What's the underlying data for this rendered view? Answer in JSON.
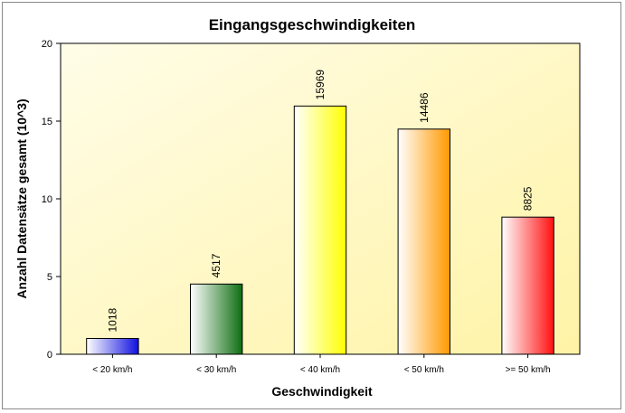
{
  "chart_data": {
    "type": "bar",
    "title": "Eingangsgeschwindigkeiten",
    "xlabel": "Geschwindigkeit",
    "ylabel": "Anzahl Datensätze gesamt (10^3)",
    "categories": [
      "< 20 km/h",
      "< 30 km/h",
      "< 40 km/h",
      "< 50 km/h",
      ">= 50 km/h"
    ],
    "values": [
      1.018,
      4.517,
      15.969,
      14.486,
      8.825
    ],
    "data_labels": [
      "1018",
      "4517",
      "15969",
      "14486",
      "8825"
    ],
    "bar_colors": [
      "#1010e0",
      "#0e6e12",
      "#ffff00",
      "#ff9900",
      "#ff1010"
    ],
    "ylim": [
      0,
      20
    ],
    "yticks": [
      0,
      5,
      10,
      15,
      20
    ],
    "ytick_labels": [
      "0",
      "5",
      "10",
      "15",
      "20"
    ],
    "grid": false,
    "legend": "none",
    "plot_background": [
      "#fffde8",
      "#fff3a6"
    ]
  }
}
